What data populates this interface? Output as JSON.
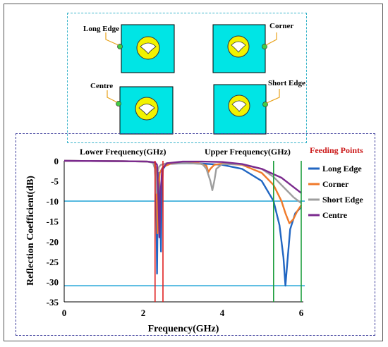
{
  "diagram": {
    "panels": [
      {
        "label": "Long Edge"
      },
      {
        "label": "Corner"
      },
      {
        "label": "Centre"
      },
      {
        "label": "Short Edge"
      }
    ]
  },
  "colors": {
    "patch": "#00e5e5",
    "radiator": "#f2f200",
    "feed": "#44cc44",
    "limit_line": "#1fa3d6",
    "lower_band": "#e02020",
    "upper_band": "#1e9e3e"
  },
  "chart_data": {
    "type": "line",
    "xlabel": "Frequency(GHz)",
    "ylabel": "Reflection Coefficient(dB)",
    "xlim": [
      0,
      6
    ],
    "ylim": [
      -35,
      0
    ],
    "xticks": [
      0,
      2,
      4,
      6
    ],
    "yticks": [
      0,
      -5,
      -10,
      -15,
      -20,
      -25,
      -30,
      -35
    ],
    "annotations": {
      "lower": "Lower Frequency(GHz)",
      "upper": "Upper Frequency(GHz)"
    },
    "legend_title": "Feeding Points",
    "legend_position": "right",
    "reference_lines_y": [
      -10,
      -31
    ],
    "band_lines_x": {
      "lower": [
        2.3,
        2.5
      ],
      "upper": [
        5.3,
        6.0
      ]
    },
    "series": [
      {
        "name": "Long Edge",
        "color": "#2166c2",
        "points": [
          [
            0,
            0
          ],
          [
            1.5,
            -0.1
          ],
          [
            2.1,
            -0.2
          ],
          [
            2.25,
            -0.4
          ],
          [
            2.3,
            -2
          ],
          [
            2.33,
            -10
          ],
          [
            2.35,
            -28
          ],
          [
            2.37,
            -10
          ],
          [
            2.4,
            -3
          ],
          [
            2.43,
            -12
          ],
          [
            2.45,
            -22.5
          ],
          [
            2.47,
            -8
          ],
          [
            2.5,
            -2
          ],
          [
            2.6,
            -0.8
          ],
          [
            3,
            -0.6
          ],
          [
            3.5,
            -0.7
          ],
          [
            4,
            -1
          ],
          [
            4.5,
            -2
          ],
          [
            5,
            -5
          ],
          [
            5.3,
            -10
          ],
          [
            5.45,
            -16
          ],
          [
            5.55,
            -24
          ],
          [
            5.6,
            -31
          ],
          [
            5.65,
            -25
          ],
          [
            5.72,
            -17
          ],
          [
            5.85,
            -13
          ],
          [
            6,
            -11.5
          ]
        ]
      },
      {
        "name": "Corner",
        "color": "#f07a2a",
        "points": [
          [
            0,
            0
          ],
          [
            1.5,
            -0.1
          ],
          [
            2.1,
            -0.2
          ],
          [
            2.25,
            -0.4
          ],
          [
            2.3,
            -1
          ],
          [
            2.33,
            -3
          ],
          [
            2.36,
            -18
          ],
          [
            2.38,
            -8
          ],
          [
            2.42,
            -3
          ],
          [
            2.5,
            -1.5
          ],
          [
            2.7,
            -0.7
          ],
          [
            3,
            -0.5
          ],
          [
            3.4,
            -0.6
          ],
          [
            3.6,
            -1.2
          ],
          [
            3.65,
            -2.8
          ],
          [
            3.7,
            -2
          ],
          [
            3.8,
            -1
          ],
          [
            4,
            -0.7
          ],
          [
            4.5,
            -1
          ],
          [
            5,
            -3
          ],
          [
            5.3,
            -6
          ],
          [
            5.5,
            -10
          ],
          [
            5.6,
            -13
          ],
          [
            5.7,
            -15.5
          ],
          [
            5.8,
            -14.5
          ],
          [
            5.9,
            -12.5
          ],
          [
            6,
            -11
          ]
        ]
      },
      {
        "name": "Short Edge",
        "color": "#9e9e9e",
        "points": [
          [
            0,
            0
          ],
          [
            1.5,
            -0.1
          ],
          [
            2.1,
            -0.2
          ],
          [
            2.25,
            -0.5
          ],
          [
            2.3,
            -2
          ],
          [
            2.33,
            -8
          ],
          [
            2.36,
            -3
          ],
          [
            2.4,
            -1.5
          ],
          [
            2.45,
            -1
          ],
          [
            2.6,
            -0.6
          ],
          [
            3,
            -0.5
          ],
          [
            3.5,
            -0.8
          ],
          [
            3.6,
            -2
          ],
          [
            3.7,
            -5
          ],
          [
            3.75,
            -7.3
          ],
          [
            3.8,
            -5
          ],
          [
            3.85,
            -2
          ],
          [
            4,
            -0.8
          ],
          [
            4.5,
            -0.9
          ],
          [
            5,
            -2
          ],
          [
            5.3,
            -4
          ],
          [
            5.6,
            -7
          ],
          [
            5.8,
            -9
          ],
          [
            6,
            -10.5
          ]
        ]
      },
      {
        "name": "Centre",
        "color": "#7b2a8e",
        "points": [
          [
            0,
            0
          ],
          [
            1.5,
            -0.1
          ],
          [
            2.1,
            -0.2
          ],
          [
            2.3,
            -0.4
          ],
          [
            2.35,
            -1
          ],
          [
            2.38,
            -8
          ],
          [
            2.41,
            -19
          ],
          [
            2.44,
            -8
          ],
          [
            2.48,
            -2
          ],
          [
            2.6,
            -0.6
          ],
          [
            3,
            -0.2
          ],
          [
            3.5,
            -0.2
          ],
          [
            4,
            -0.3
          ],
          [
            4.5,
            -0.8
          ],
          [
            5,
            -2
          ],
          [
            5.5,
            -4.2
          ],
          [
            6,
            -8
          ]
        ]
      }
    ]
  }
}
